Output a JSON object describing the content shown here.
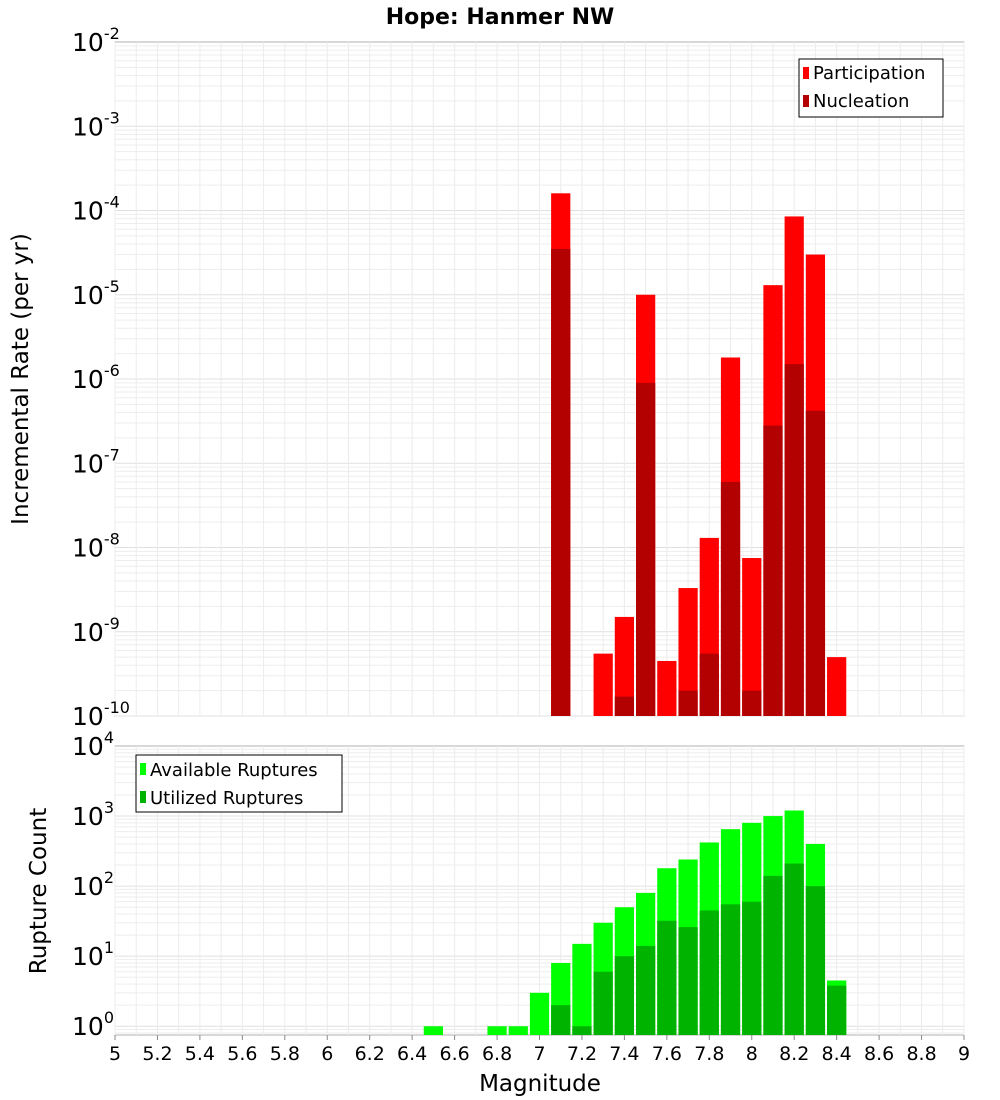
{
  "chart_data": [
    {
      "type": "bar",
      "title": "Hope: Hanmer NW",
      "xlabel": "",
      "ylabel": "Incremental Rate (per yr)",
      "yscale": "log",
      "ylim": [
        1e-10,
        0.01
      ],
      "y_ticks": [
        {
          "base": "10",
          "exp": "-10"
        },
        {
          "base": "10",
          "exp": "-9"
        },
        {
          "base": "10",
          "exp": "-8"
        },
        {
          "base": "10",
          "exp": "-7"
        },
        {
          "base": "10",
          "exp": "-6"
        },
        {
          "base": "10",
          "exp": "-5"
        },
        {
          "base": "10",
          "exp": "-4"
        },
        {
          "base": "10",
          "exp": "-3"
        },
        {
          "base": "10",
          "exp": "-2"
        }
      ],
      "legend_position": "top-right",
      "grid": true,
      "bar_width": 0.1,
      "series": [
        {
          "name": "Participation",
          "color": "#ff0000",
          "x": [
            7.1,
            7.3,
            7.4,
            7.5,
            7.6,
            7.7,
            7.8,
            7.9,
            8.0,
            8.1,
            8.2,
            8.3,
            8.4
          ],
          "values": [
            0.00016,
            5.5e-10,
            1.5e-09,
            1e-05,
            4.5e-10,
            3.3e-09,
            1.3e-08,
            1.8e-06,
            7.5e-09,
            1.3e-05,
            8.5e-05,
            3e-05,
            5e-10
          ]
        },
        {
          "name": "Nucleation",
          "color": "#b30000",
          "x": [
            7.1,
            7.4,
            7.5,
            7.7,
            7.8,
            7.9,
            8.0,
            8.1,
            8.2,
            8.3
          ],
          "values": [
            3.5e-05,
            1.7e-10,
            9e-07,
            2e-10,
            5.5e-10,
            6e-08,
            2e-10,
            2.8e-07,
            1.5e-06,
            4.2e-07
          ]
        }
      ]
    },
    {
      "type": "bar",
      "title": "",
      "xlabel": "Magnitude",
      "ylabel": "Rupture Count",
      "yscale": "log",
      "ylim": [
        0.75,
        10000
      ],
      "y_ticks": [
        {
          "base": "10",
          "exp": "0"
        },
        {
          "base": "10",
          "exp": "1"
        },
        {
          "base": "10",
          "exp": "2"
        },
        {
          "base": "10",
          "exp": "3"
        },
        {
          "base": "10",
          "exp": "4"
        }
      ],
      "xlim": [
        5,
        9
      ],
      "x_ticks": [
        "5",
        "5.2",
        "5.4",
        "5.6",
        "5.8",
        "6",
        "6.2",
        "6.4",
        "6.6",
        "6.8",
        "7",
        "7.2",
        "7.4",
        "7.6",
        "7.8",
        "8",
        "8.2",
        "8.4",
        "8.6",
        "8.8",
        "9"
      ],
      "legend_position": "top-left",
      "grid": true,
      "bar_width": 0.1,
      "series": [
        {
          "name": "Available Ruptures",
          "color": "#00ff00",
          "x": [
            6.5,
            6.8,
            6.9,
            7.0,
            7.1,
            7.2,
            7.3,
            7.4,
            7.5,
            7.6,
            7.7,
            7.8,
            7.9,
            8.0,
            8.1,
            8.2,
            8.3,
            8.4
          ],
          "values": [
            1,
            1,
            1,
            3,
            8,
            15,
            30,
            50,
            80,
            180,
            240,
            420,
            650,
            800,
            1000,
            1200,
            400,
            4.5
          ]
        },
        {
          "name": "Utilized Ruptures",
          "color": "#00b300",
          "x": [
            7.1,
            7.2,
            7.3,
            7.4,
            7.5,
            7.6,
            7.7,
            7.8,
            7.9,
            8.0,
            8.1,
            8.2,
            8.3,
            8.4
          ],
          "values": [
            2,
            1,
            6,
            10,
            14,
            32,
            26,
            45,
            55,
            60,
            140,
            210,
            100,
            3.8
          ]
        }
      ]
    }
  ]
}
